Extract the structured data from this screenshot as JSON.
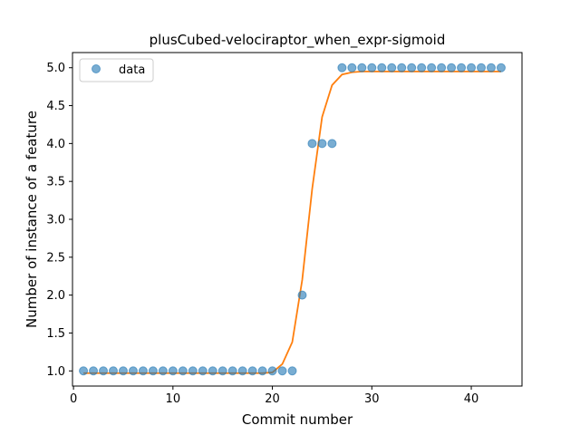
{
  "chart_data": {
    "type": "scatter",
    "title": "plusCubed-velociraptor_when_expr-sigmoid",
    "xlabel": "Commit number",
    "ylabel": "Number of instance of a feature",
    "xlim": [
      -0.1,
      45.1
    ],
    "ylim": [
      0.8,
      5.2
    ],
    "xticks": [
      0,
      10,
      20,
      30,
      40
    ],
    "yticks": [
      1.0,
      1.5,
      2.0,
      2.5,
      3.0,
      3.5,
      4.0,
      4.5,
      5.0
    ],
    "ytick_labels": [
      "1.0",
      "1.5",
      "2.0",
      "2.5",
      "3.0",
      "3.5",
      "4.0",
      "4.5",
      "5.0"
    ],
    "legend": {
      "position": "top-left",
      "entries": [
        "data"
      ]
    },
    "grid": false,
    "series": [
      {
        "name": "data",
        "kind": "scatter",
        "color": "#1f77b4",
        "x": [
          1,
          2,
          3,
          4,
          5,
          6,
          7,
          8,
          9,
          10,
          11,
          12,
          13,
          14,
          15,
          16,
          17,
          18,
          19,
          20,
          21,
          22,
          23,
          24,
          25,
          26,
          27,
          28,
          29,
          30,
          31,
          32,
          33,
          34,
          35,
          36,
          37,
          38,
          39,
          40,
          41,
          42,
          43
        ],
        "y": [
          1,
          1,
          1,
          1,
          1,
          1,
          1,
          1,
          1,
          1,
          1,
          1,
          1,
          1,
          1,
          1,
          1,
          1,
          1,
          1,
          1,
          1,
          2,
          4,
          4,
          4,
          5,
          5,
          5,
          5,
          5,
          5,
          5,
          5,
          5,
          5,
          5,
          5,
          5,
          5,
          5,
          5,
          5
        ]
      },
      {
        "kind": "line",
        "color": "#ff7f0e",
        "x": [
          1,
          2,
          3,
          4,
          5,
          6,
          7,
          8,
          9,
          10,
          11,
          12,
          13,
          14,
          15,
          16,
          17,
          18,
          19,
          20,
          21,
          22,
          23,
          24,
          25,
          26,
          27,
          28,
          29,
          30,
          31,
          32,
          33,
          34,
          35,
          36,
          37,
          38,
          39,
          40,
          41,
          42,
          43
        ],
        "y": [
          0.97,
          0.97,
          0.97,
          0.97,
          0.97,
          0.97,
          0.97,
          0.97,
          0.97,
          0.97,
          0.97,
          0.97,
          0.97,
          0.97,
          0.97,
          0.97,
          0.97,
          0.97,
          0.97,
          0.98,
          1.09,
          1.38,
          2.2,
          3.4,
          4.35,
          4.77,
          4.91,
          4.94,
          4.95,
          4.95,
          4.95,
          4.95,
          4.95,
          4.95,
          4.95,
          4.95,
          4.95,
          4.95,
          4.95,
          4.95,
          4.95,
          4.95,
          4.95
        ]
      }
    ]
  }
}
